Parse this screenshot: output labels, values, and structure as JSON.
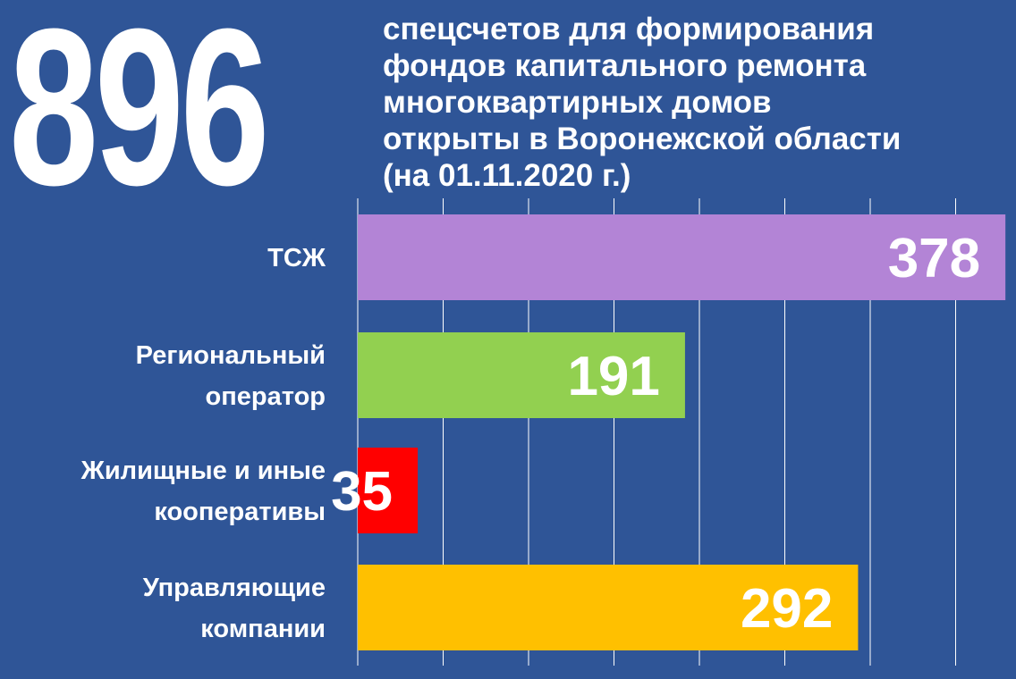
{
  "big_number": "896",
  "headline_lines": [
    "спецсчетов для формирования",
    "фондов капитального ремонта",
    "многоквартирных домов",
    "открыты в Воронежской области",
    "(на 01.11.2020 г.)"
  ],
  "chart_data": {
    "type": "bar",
    "orientation": "horizontal",
    "categories": [
      [
        "ТСЖ"
      ],
      [
        "Региональный",
        "оператор"
      ],
      [
        "Жилищные и иные",
        "кооперативы"
      ],
      [
        "Управляющие",
        "компании"
      ]
    ],
    "values": [
      378,
      191,
      35,
      292
    ],
    "value_labels": [
      "378",
      "191",
      "35",
      "292"
    ],
    "colors": [
      "#b384d6",
      "#92d050",
      "#ff0000",
      "#ffc000"
    ],
    "xlim": [
      0,
      380
    ],
    "grid": true,
    "gridline_color": "#ffffff",
    "background": "#2f5597",
    "text_color": "#ffffff"
  }
}
